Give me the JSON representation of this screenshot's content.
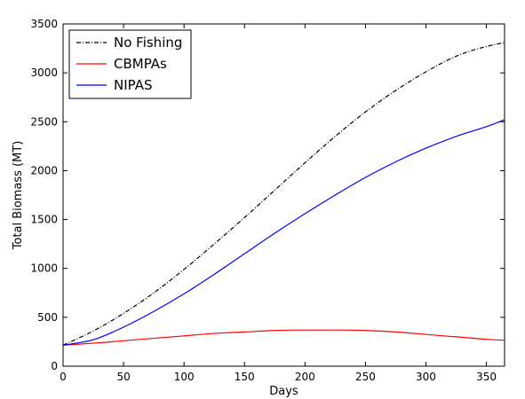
{
  "chart_data": {
    "type": "line",
    "title": "",
    "xlabel": "Days",
    "ylabel": "Total Biomass (MT)",
    "xlim": [
      0,
      365
    ],
    "ylim": [
      0,
      3500
    ],
    "grid": false,
    "legend_position": "top-left",
    "x_ticks": [
      0,
      50,
      100,
      150,
      200,
      250,
      300,
      350
    ],
    "y_ticks": [
      0,
      500,
      1000,
      1500,
      2000,
      2500,
      3000,
      3500
    ],
    "x": [
      0,
      25,
      50,
      75,
      100,
      125,
      150,
      175,
      200,
      225,
      250,
      275,
      300,
      325,
      350,
      365
    ],
    "series": [
      {
        "name": "No Fishing",
        "color": "#000000",
        "line_style": "dash-dot",
        "values": [
          215,
          360,
          540,
          750,
          990,
          1250,
          1520,
          1800,
          2080,
          2350,
          2600,
          2820,
          3010,
          3170,
          3270,
          3310
        ]
      },
      {
        "name": "CBMPAs",
        "color": "#ff0000",
        "line_style": "solid",
        "values": [
          215,
          235,
          260,
          285,
          310,
          335,
          350,
          365,
          370,
          370,
          365,
          350,
          325,
          300,
          275,
          265
        ]
      },
      {
        "name": "NIPAS",
        "color": "#0000ff",
        "line_style": "solid",
        "values": [
          215,
          270,
          400,
          560,
          740,
          940,
          1150,
          1360,
          1560,
          1750,
          1930,
          2090,
          2230,
          2350,
          2450,
          2520
        ]
      }
    ]
  }
}
